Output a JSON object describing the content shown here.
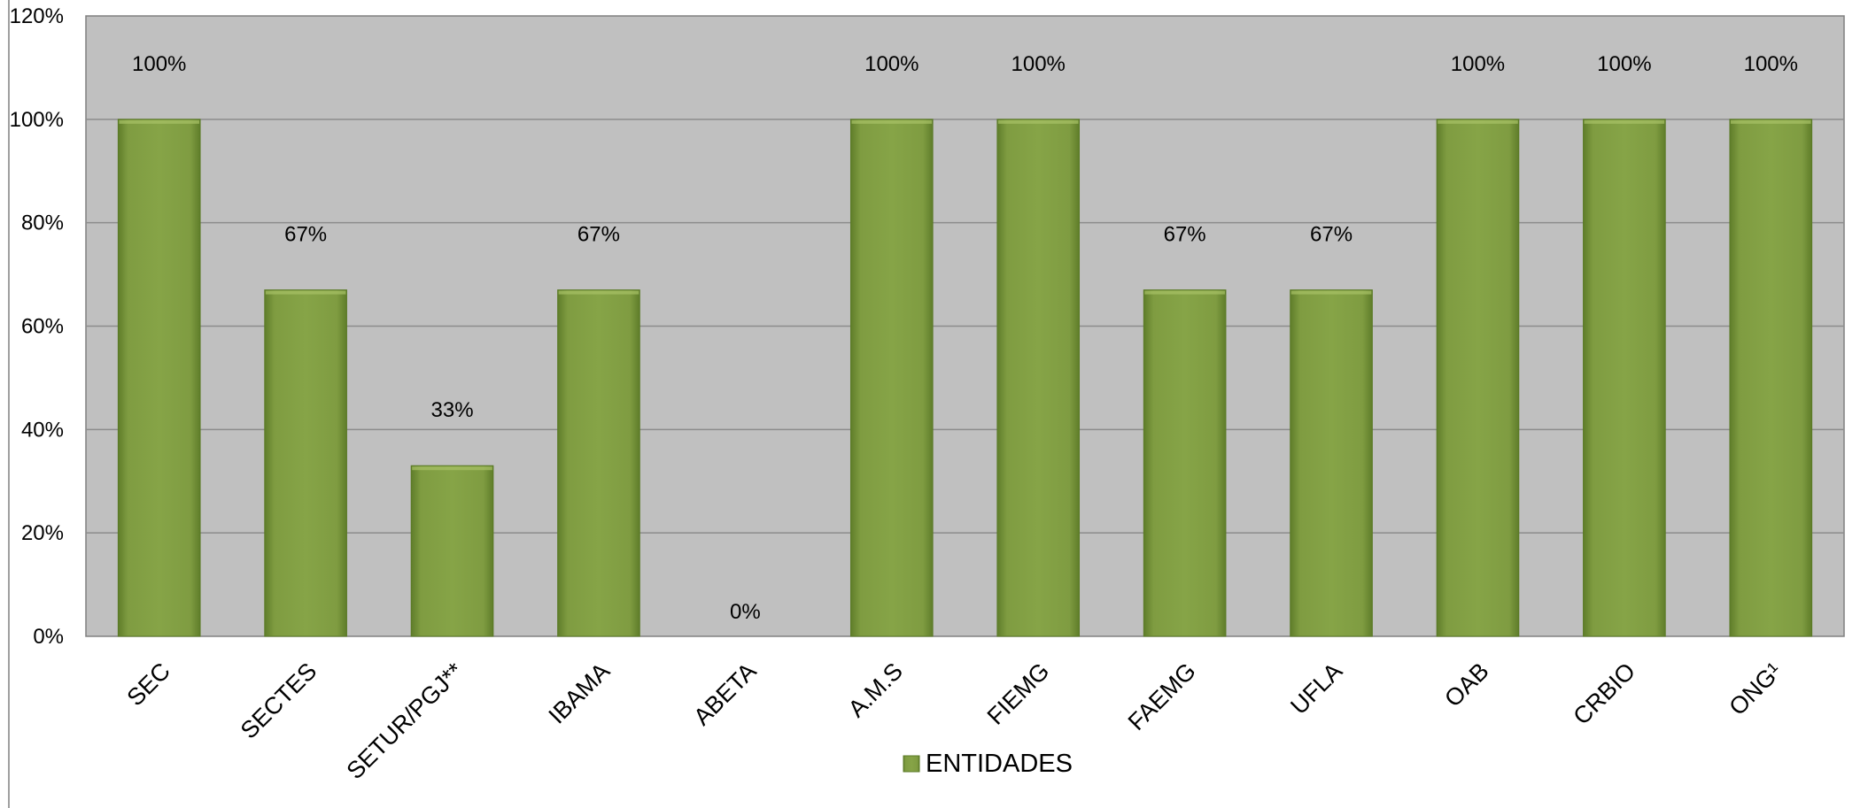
{
  "chart_data": {
    "type": "bar",
    "categories": [
      "SEC",
      "SECTES",
      "SETUR/PGJ**",
      "IBAMA",
      "ABETA",
      "A.M.S",
      "FIEMG",
      "FAEMG",
      "UFLA",
      "OAB",
      "CRBIO",
      "ONG¹"
    ],
    "series": [
      {
        "name": "ENTIDADES",
        "values": [
          100,
          67,
          33,
          67,
          0,
          100,
          100,
          67,
          67,
          100,
          100,
          100
        ],
        "data_labels": [
          "100%",
          "67%",
          "33%",
          "67%",
          "0%",
          "100%",
          "100%",
          "67%",
          "67%",
          "100%",
          "100%",
          "100%"
        ]
      }
    ],
    "ylim": [
      0,
      120
    ],
    "yticks": [
      "0%",
      "20%",
      "40%",
      "60%",
      "80%",
      "100%",
      "120%"
    ],
    "grid": true,
    "legend_position": "bottom",
    "colors": {
      "bar": "#7f9c41",
      "bar_dark": "#5a7a25",
      "plot_background": "#c0c0c0",
      "gridline": "#8c8c8c"
    }
  }
}
